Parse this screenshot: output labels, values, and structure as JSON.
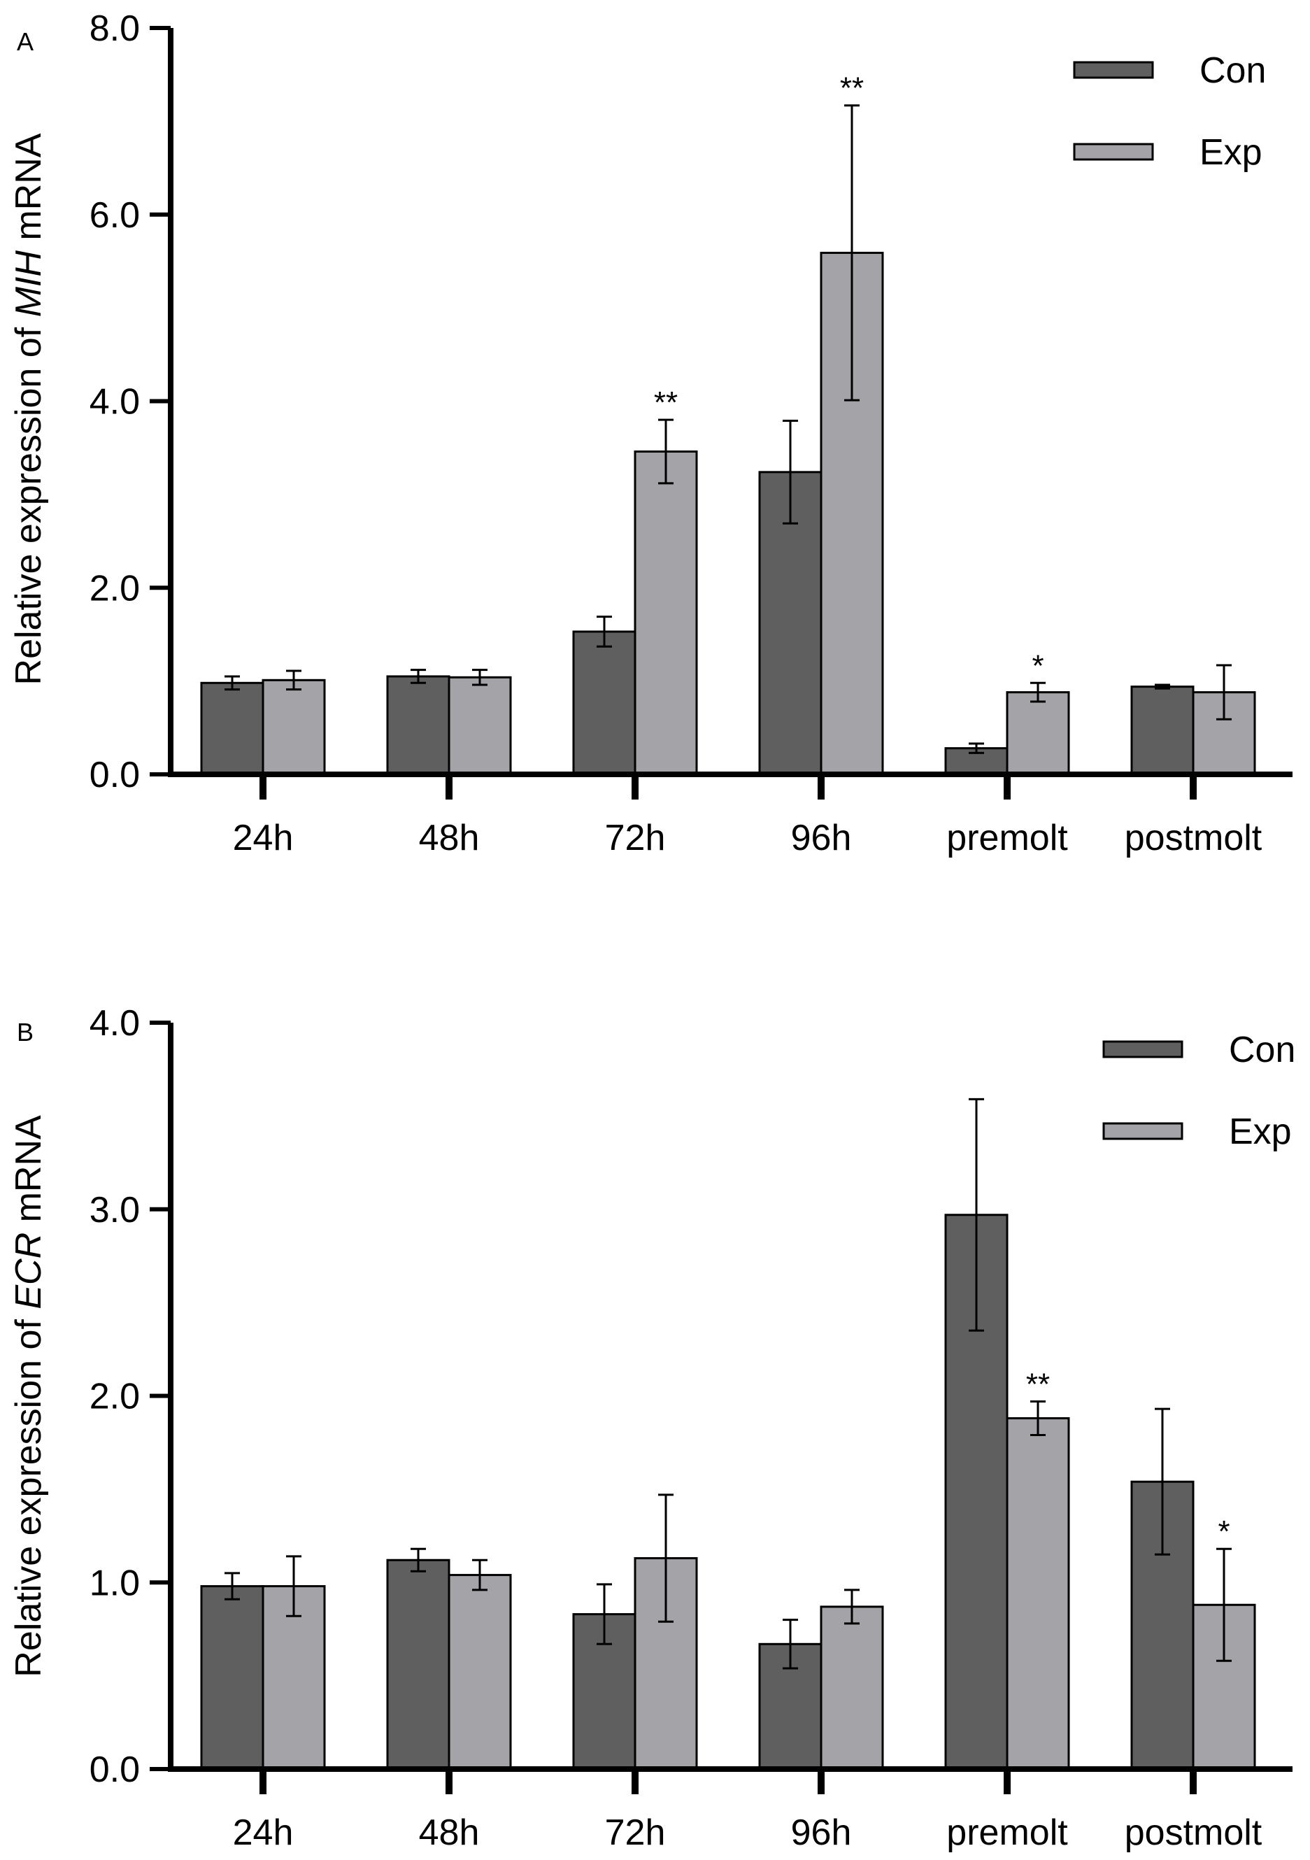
{
  "chart_data": [
    {
      "type": "bar",
      "panel": "A",
      "ylabel": {
        "prefix": "Relative  expression of ",
        "gene": "MIH",
        "suffix": " mRNA"
      },
      "ylim": [
        0,
        8
      ],
      "yticks": [
        "0.0",
        "2.0",
        "4.0",
        "6.0",
        "8.0"
      ],
      "categories": [
        "24h",
        "48h",
        "72h",
        "96h",
        "premolt",
        "postmolt"
      ],
      "series": [
        {
          "name": "Con",
          "color": "#5f5f5f",
          "values": [
            0.98,
            1.05,
            1.53,
            3.24,
            0.28,
            0.94
          ],
          "errors": [
            0.07,
            0.07,
            0.16,
            0.55,
            0.05,
            0.02
          ]
        },
        {
          "name": "Exp",
          "color": "#a4a4a8",
          "values": [
            1.01,
            1.04,
            3.46,
            5.59,
            0.88,
            0.88
          ],
          "errors": [
            0.1,
            0.08,
            0.34,
            1.58,
            0.1,
            0.29
          ]
        }
      ],
      "significance": [
        {
          "category": 2,
          "series": 1,
          "label": "**"
        },
        {
          "category": 3,
          "series": 1,
          "label": "**"
        },
        {
          "category": 4,
          "series": 1,
          "label": "*"
        }
      ],
      "legend": "top-right"
    },
    {
      "type": "bar",
      "panel": "B",
      "ylabel": {
        "prefix": "Relative expression of ",
        "gene": "ECR",
        "suffix": " mRNA"
      },
      "ylim": [
        0,
        4
      ],
      "yticks": [
        "0.0",
        "1.0",
        "2.0",
        "3.0",
        "4.0"
      ],
      "categories": [
        "24h",
        "48h",
        "72h",
        "96h",
        "premolt",
        "postmolt"
      ],
      "series": [
        {
          "name": "Con",
          "color": "#5f5f5f",
          "values": [
            0.98,
            1.12,
            0.83,
            0.67,
            2.97,
            1.54
          ],
          "errors": [
            0.07,
            0.06,
            0.16,
            0.13,
            0.62,
            0.39
          ]
        },
        {
          "name": "Exp",
          "color": "#a4a4a8",
          "values": [
            0.98,
            1.04,
            1.13,
            0.87,
            1.88,
            0.88
          ],
          "errors": [
            0.16,
            0.08,
            0.34,
            0.09,
            0.09,
            0.3
          ]
        }
      ],
      "significance": [
        {
          "category": 4,
          "series": 1,
          "label": "**"
        },
        {
          "category": 5,
          "series": 1,
          "label": "*"
        }
      ],
      "legend": "top-right"
    }
  ]
}
